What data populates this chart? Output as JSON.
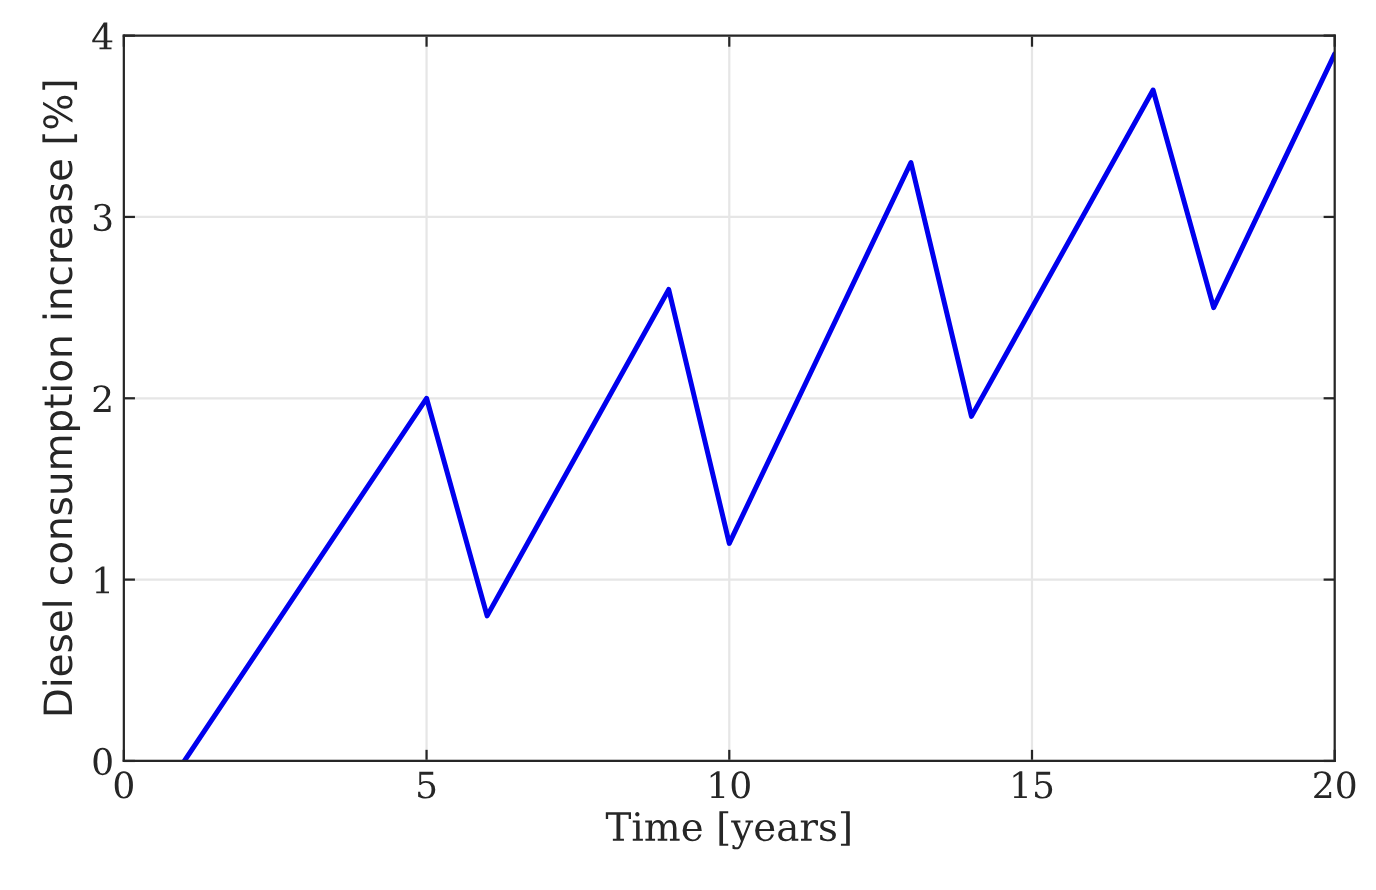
{
  "chart_data": {
    "type": "line",
    "xlabel": "Time [years]",
    "ylabel": "Diesel consumption increase [%]",
    "series": [
      {
        "color": "#0000ee",
        "x": [
          1,
          5,
          6,
          9,
          10,
          13,
          14,
          17,
          18,
          20
        ],
        "values": [
          0,
          2,
          0.8,
          2.6,
          1.2,
          3.3,
          1.9,
          3.7,
          2.5,
          3.9
        ]
      }
    ],
    "xlim": [
      0,
      20
    ],
    "xticks": [
      0,
      5,
      10,
      15,
      20
    ],
    "ylim": [
      0,
      4
    ],
    "yticks": [
      0,
      1,
      2,
      3,
      4
    ],
    "grid": true
  }
}
